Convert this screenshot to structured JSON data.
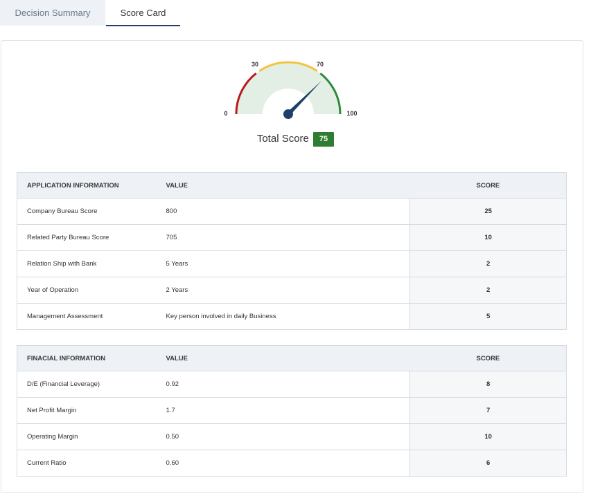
{
  "tabs": [
    {
      "label": "Decision Summary",
      "active": false
    },
    {
      "label": "Score Card",
      "active": true
    }
  ],
  "gauge": {
    "labels": [
      "0",
      "30",
      "70",
      "100"
    ],
    "value": 75,
    "min": 0,
    "max": 100,
    "colors": {
      "low": "#b71c1c",
      "mid": "#f5c242",
      "high": "#2e8b3a",
      "fill": "#e3efe4",
      "needle": "#1f3f68"
    }
  },
  "total": {
    "label": "Total Score",
    "value": "75",
    "badge_color": "#2e7d32"
  },
  "application_table": {
    "headers": [
      "APPLICATION INFORMATION",
      "VALUE",
      "SCORE"
    ],
    "rows": [
      [
        "Company Bureau Score",
        "800",
        "25"
      ],
      [
        "Related Party Bureau Score",
        "705",
        "10"
      ],
      [
        "Relation Ship with Bank",
        "5 Years",
        "2"
      ],
      [
        "Year of Operation",
        "2 Years",
        "2"
      ],
      [
        "Management Assessment",
        "Key person involved in daily Business",
        "5"
      ]
    ]
  },
  "financial_table": {
    "headers": [
      "FINACIAL INFORMATION",
      "VALUE",
      "SCORE"
    ],
    "rows": [
      [
        "D/E (Financial Leverage)",
        "0.92",
        "8"
      ],
      [
        "Net Profit Margin",
        "1.7",
        "7"
      ],
      [
        "Operating Margin",
        "0.50",
        "10"
      ],
      [
        "Current Ratio",
        "0.60",
        "6"
      ]
    ]
  }
}
